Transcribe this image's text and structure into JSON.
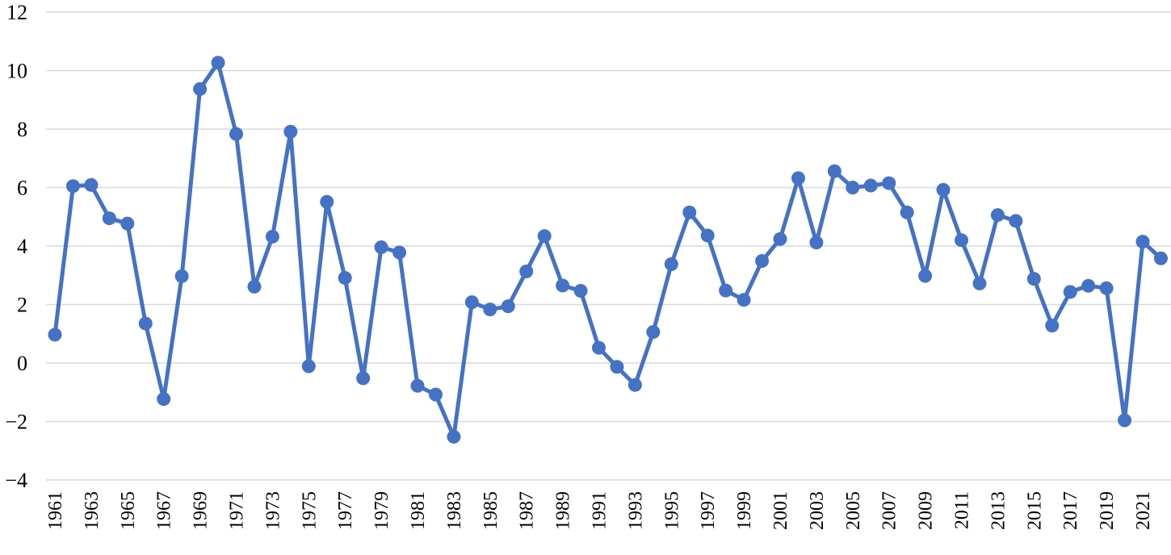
{
  "chart_data": {
    "type": "line",
    "title": "",
    "xlabel": "",
    "ylabel": "",
    "ylim": [
      -4,
      12
    ],
    "y_ticks": [
      -4,
      -2,
      0,
      2,
      4,
      6,
      8,
      10,
      12
    ],
    "grid": true,
    "legend": "none",
    "color": "#4472c4",
    "x": [
      1961,
      1962,
      1963,
      1964,
      1965,
      1966,
      1967,
      1968,
      1969,
      1970,
      1971,
      1972,
      1973,
      1974,
      1975,
      1976,
      1977,
      1978,
      1979,
      1980,
      1981,
      1982,
      1983,
      1984,
      1985,
      1986,
      1987,
      1988,
      1989,
      1990,
      1991,
      1992,
      1993,
      1994,
      1995,
      1996,
      1997,
      1998,
      1999,
      2000,
      2001,
      2002,
      2003,
      2004,
      2005,
      2006,
      2007,
      2008,
      2009,
      2010,
      2011,
      2012,
      2013,
      2014,
      2015,
      2016,
      2017,
      2018,
      2019,
      2020,
      2021,
      2022
    ],
    "x_tick_labels": [
      "1961",
      "1963",
      "1965",
      "1967",
      "1969",
      "1971",
      "1973",
      "1975",
      "1977",
      "1979",
      "1981",
      "1983",
      "1985",
      "1987",
      "1989",
      "1991",
      "1993",
      "1995",
      "1997",
      "1999",
      "2001",
      "2003",
      "2005",
      "2007",
      "2009",
      "2011",
      "2013",
      "2015",
      "2017",
      "2019",
      "2021"
    ],
    "series": [
      {
        "values": [
          0.97,
          6.05,
          6.09,
          4.95,
          4.77,
          1.35,
          -1.23,
          2.97,
          9.37,
          10.27,
          7.83,
          2.61,
          4.32,
          7.91,
          -0.11,
          5.51,
          2.91,
          -0.52,
          3.96,
          3.78,
          -0.78,
          -1.08,
          -2.52,
          2.08,
          1.83,
          1.94,
          3.13,
          4.34,
          2.65,
          2.47,
          0.52,
          -0.13,
          -0.75,
          1.06,
          3.38,
          5.15,
          4.36,
          2.48,
          2.16,
          3.49,
          4.24,
          6.32,
          4.12,
          6.56,
          6.0,
          6.07,
          6.15,
          5.15,
          2.98,
          5.92,
          4.2,
          2.72,
          5.06,
          4.86,
          2.88,
          1.28,
          2.43,
          2.64,
          2.56,
          -1.96,
          4.15,
          3.58
        ]
      }
    ]
  }
}
